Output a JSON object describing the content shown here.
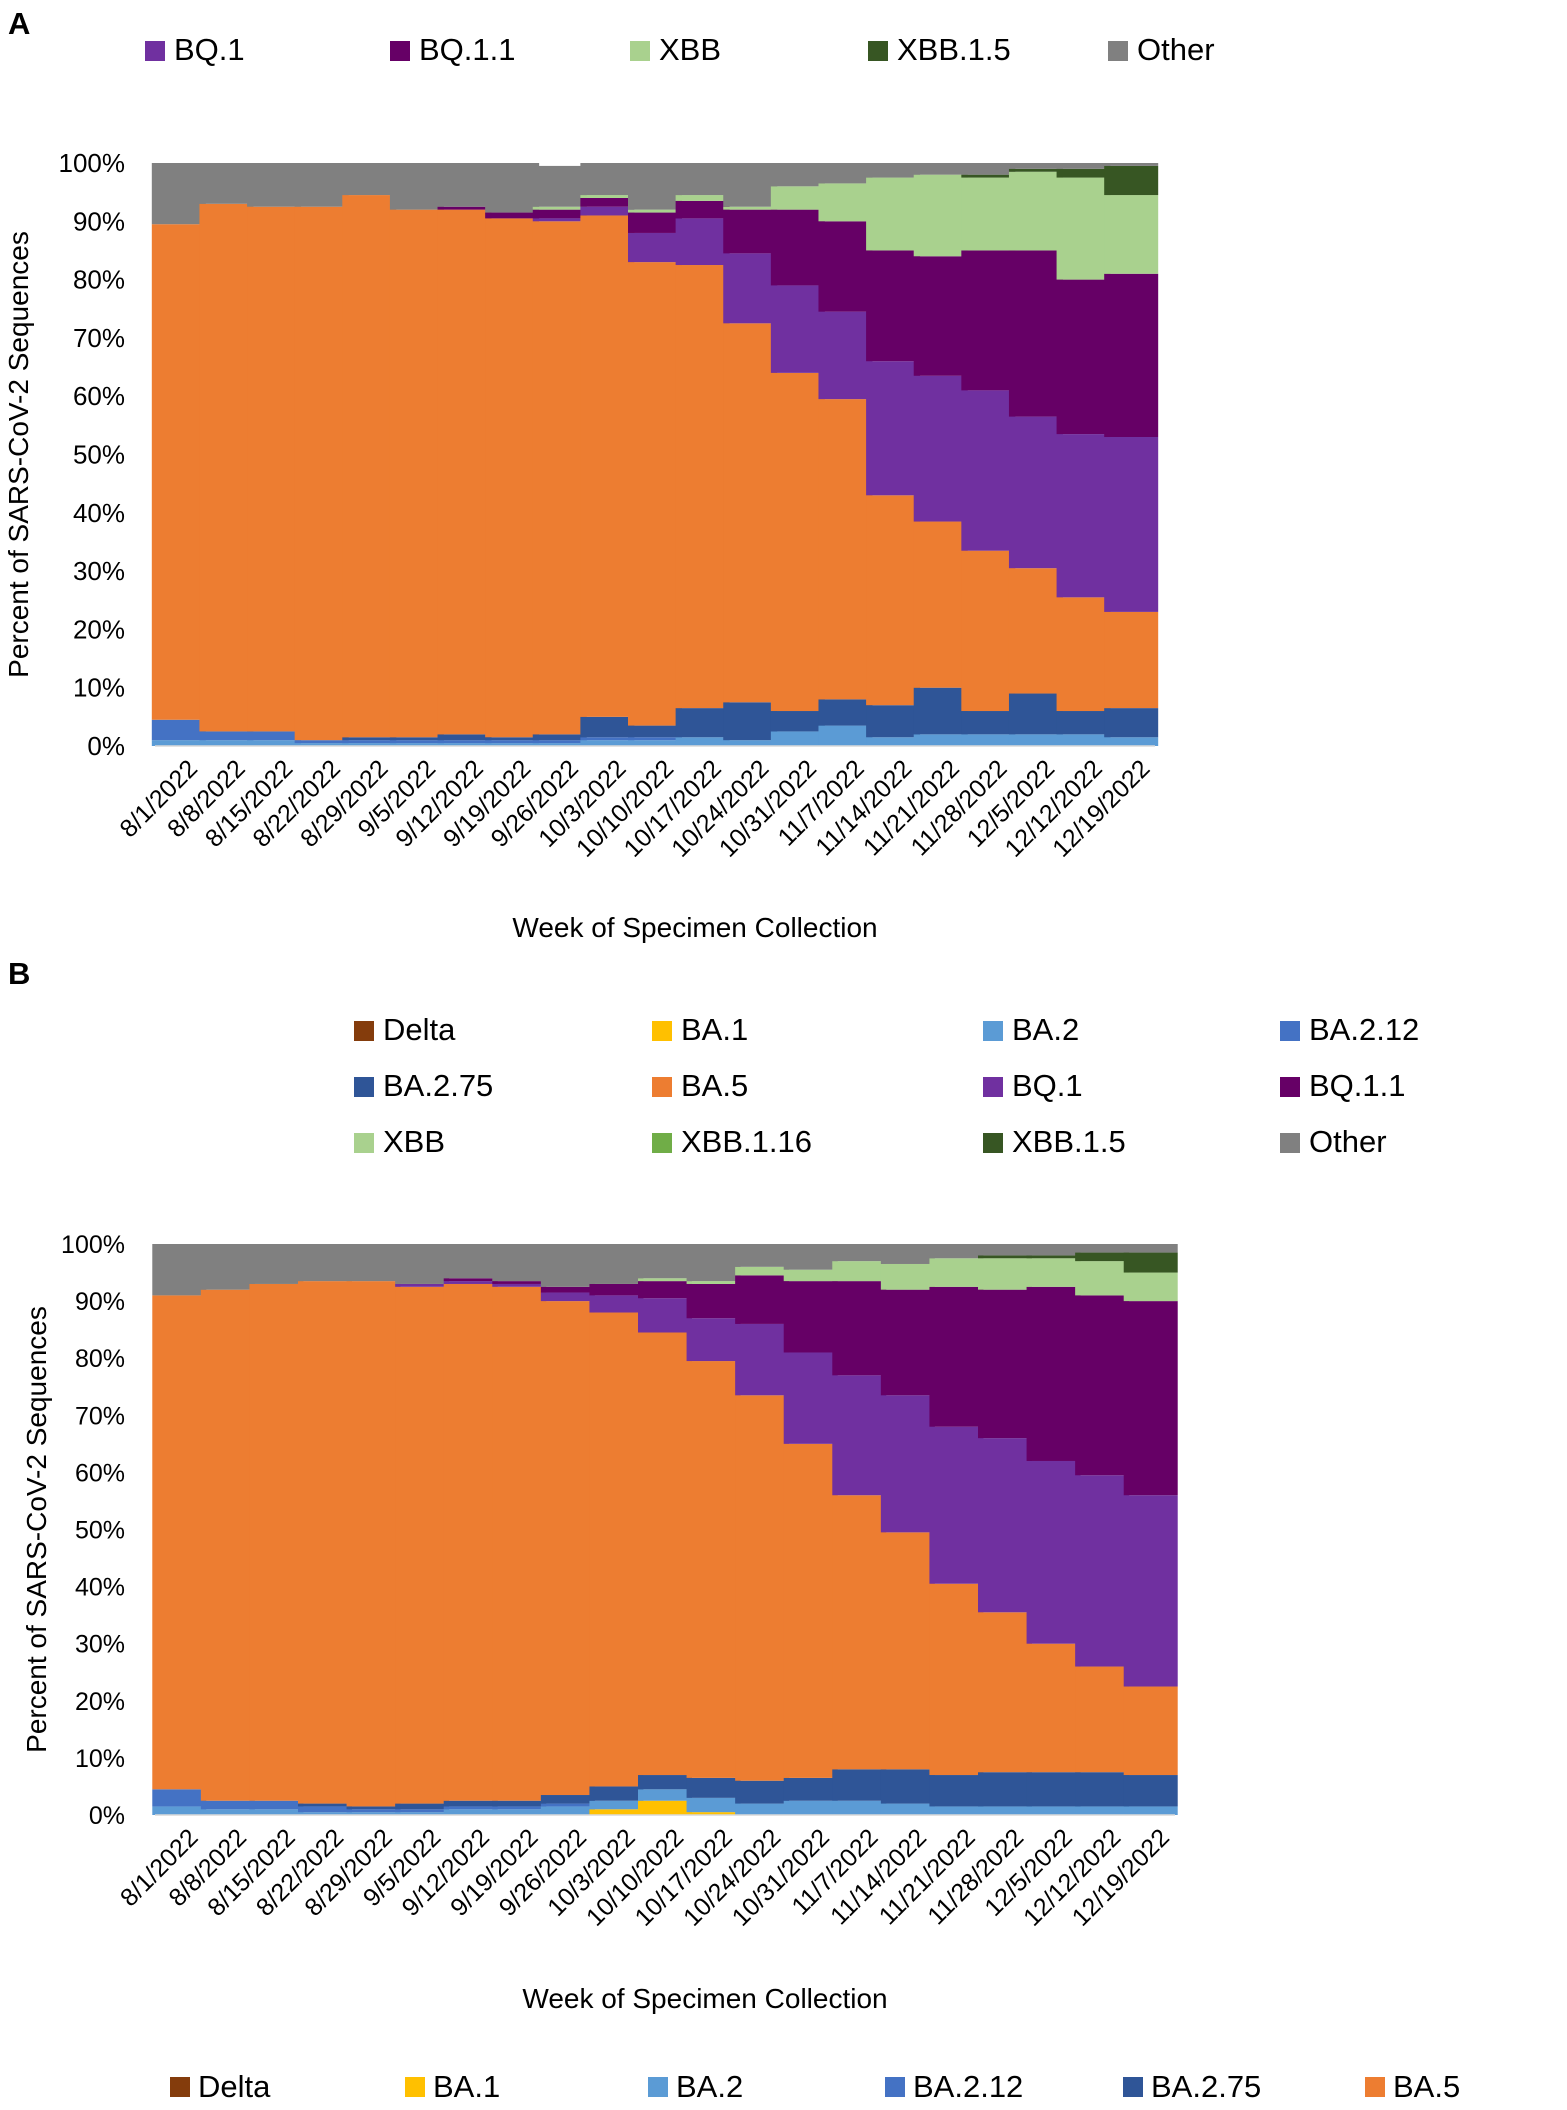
{
  "colors": {
    "Delta": "#843c0c",
    "BA.1": "#ffc000",
    "BA.2": "#5b9bd5",
    "BA.2.12": "#4472c4",
    "BA.2.75": "#2f5597",
    "BA.5": "#ed7d31",
    "BQ.1": "#7030a0",
    "BQ.1.1": "#660066",
    "XBB": "#a9d18e",
    "XBB.1.16": "#70ad47",
    "XBB.1.5": "#375623",
    "Other": "#808080"
  },
  "weeks": [
    "8/1/2022",
    "8/8/2022",
    "8/15/2022",
    "8/22/2022",
    "8/29/2022",
    "9/5/2022",
    "9/12/2022",
    "9/19/2022",
    "9/26/2022",
    "10/3/2022",
    "10/10/2022",
    "10/17/2022",
    "10/24/2022",
    "10/31/2022",
    "11/7/2022",
    "11/14/2022",
    "11/21/2022",
    "11/28/2022",
    "12/5/2022",
    "12/12/2022",
    "12/19/2022"
  ],
  "chart_data": [
    {
      "type": "bar",
      "panel_label": "A",
      "stacked": true,
      "title": "",
      "xlabel": "Week of Specimen Collection",
      "ylabel": "Percent of SARS-CoV-2 Sequences",
      "ylim": [
        0,
        100
      ],
      "yticks": [
        "0%",
        "10%",
        "20%",
        "30%",
        "40%",
        "50%",
        "60%",
        "70%",
        "80%",
        "90%",
        "100%"
      ],
      "legend": [
        "BQ.1",
        "BQ.1.1",
        "XBB",
        "XBB.1.5",
        "Other"
      ],
      "series": [
        {
          "name": "BA.2",
          "values": [
            1,
            1,
            1,
            0.5,
            0.5,
            0.5,
            0.5,
            0.5,
            0.5,
            1,
            1,
            1.5,
            1,
            2.5,
            3.5,
            1.5,
            2,
            2,
            2,
            2,
            1.5
          ]
        },
        {
          "name": "BA.2.12",
          "values": [
            3.5,
            1.5,
            1.5,
            0.5,
            0.5,
            0.5,
            0.5,
            0.5,
            0.5,
            0.5,
            0.5,
            0,
            0,
            0,
            0,
            0,
            0,
            0,
            0,
            0,
            0
          ]
        },
        {
          "name": "BA.2.75",
          "values": [
            0,
            0,
            0,
            0,
            0.5,
            0.5,
            1,
            0.5,
            1,
            3.5,
            2,
            5,
            6.5,
            3.5,
            4.5,
            5.5,
            8,
            4,
            7,
            4,
            5
          ]
        },
        {
          "name": "BA.5",
          "values": [
            85,
            90.5,
            90,
            91.5,
            93,
            90.5,
            90,
            89,
            88,
            86,
            79.5,
            76,
            65,
            58,
            51.5,
            36,
            28.5,
            27.5,
            21.5,
            19.5,
            16.5
          ]
        },
        {
          "name": "BQ.1",
          "values": [
            0,
            0,
            0,
            0,
            0,
            0,
            0,
            0,
            0.5,
            1.5,
            5,
            8,
            12,
            15,
            15,
            23,
            25,
            27.5,
            26,
            28,
            30
          ]
        },
        {
          "name": "BQ.1.1",
          "values": [
            0,
            0,
            0,
            0,
            0,
            0,
            0.5,
            1,
            1.5,
            1.5,
            3.5,
            3,
            7.5,
            13,
            15.5,
            19,
            20.5,
            24,
            28.5,
            26.5,
            28
          ]
        },
        {
          "name": "XBB",
          "values": [
            0,
            0,
            0,
            0,
            0,
            0,
            0,
            0,
            0.5,
            0.5,
            0.5,
            1,
            0.5,
            4,
            6.5,
            12.5,
            14,
            12.5,
            13.5,
            17.5,
            13.5
          ]
        },
        {
          "name": "XBB.1.5",
          "values": [
            0,
            0,
            0,
            0,
            0,
            0,
            0,
            0,
            0,
            0,
            0,
            0,
            0,
            0,
            0,
            0,
            0,
            0.5,
            0.5,
            1.5,
            5
          ]
        },
        {
          "name": "Other",
          "values": [
            10.5,
            7,
            7.5,
            7.5,
            5.5,
            8,
            7.5,
            8.5,
            7,
            5.5,
            8,
            5.5,
            7.5,
            4,
            3.5,
            2.5,
            2,
            2,
            1,
            1,
            0.5
          ]
        }
      ]
    },
    {
      "type": "bar",
      "panel_label": "B",
      "stacked": true,
      "title": "",
      "xlabel": "Week of Specimen Collection",
      "ylabel": "Percent of SARS-CoV-2 Sequences",
      "ylim": [
        0,
        100
      ],
      "yticks": [
        "0%",
        "10%",
        "20%",
        "30%",
        "40%",
        "50%",
        "60%",
        "70%",
        "80%",
        "90%",
        "100%"
      ],
      "legend": [
        "Delta",
        "BA.1",
        "BA.2",
        "BA.2.12",
        "BA.2.75",
        "BA.5",
        "BQ.1",
        "BQ.1.1",
        "XBB",
        "XBB.1.16",
        "XBB.1.5",
        "Other"
      ],
      "series": [
        {
          "name": "BA.1",
          "values": [
            0,
            0,
            0,
            0,
            0,
            0,
            0,
            0,
            0,
            1,
            2.5,
            0.5,
            0,
            0,
            0,
            0,
            0,
            0,
            0,
            0,
            0
          ]
        },
        {
          "name": "BA.2",
          "values": [
            1.5,
            1,
            1,
            0.5,
            0.5,
            0.5,
            1,
            1,
            1.5,
            1.5,
            2,
            2.5,
            2,
            2.5,
            2.5,
            2,
            1.5,
            1.5,
            1.5,
            1.5,
            1.5
          ]
        },
        {
          "name": "BA.2.12",
          "values": [
            3,
            1.5,
            1.5,
            1,
            0.5,
            0.5,
            0.5,
            0.5,
            0.5,
            0,
            0,
            0,
            0,
            0,
            0,
            0,
            0,
            0,
            0,
            0,
            0
          ]
        },
        {
          "name": "BA.2.75",
          "values": [
            0,
            0,
            0,
            0.5,
            0.5,
            1,
            1,
            1,
            1.5,
            2.5,
            2.5,
            3.5,
            4,
            4,
            5.5,
            6,
            5.5,
            6,
            6,
            6,
            5.5
          ]
        },
        {
          "name": "BA.5",
          "values": [
            86.5,
            89.5,
            90.5,
            91.5,
            92,
            90.5,
            90.5,
            90,
            86.5,
            83,
            77.5,
            73,
            67.5,
            58.5,
            48,
            41.5,
            33.5,
            28,
            22.5,
            18.5,
            15.5
          ]
        },
        {
          "name": "BQ.1",
          "values": [
            0,
            0,
            0,
            0,
            0,
            0.5,
            0.5,
            0.5,
            1.5,
            3,
            6,
            7.5,
            12.5,
            16,
            21,
            24,
            27.5,
            30.5,
            32,
            33.5,
            33.5
          ]
        },
        {
          "name": "BQ.1.1",
          "values": [
            0,
            0,
            0,
            0,
            0,
            0,
            0.5,
            0.5,
            1,
            2,
            3,
            6,
            8.5,
            12.5,
            16.5,
            18.5,
            24.5,
            26,
            30.5,
            31.5,
            34
          ]
        },
        {
          "name": "XBB",
          "values": [
            0,
            0,
            0,
            0,
            0,
            0,
            0,
            0,
            0,
            0,
            0.5,
            0.5,
            1.5,
            2,
            3.5,
            4.5,
            5,
            5.5,
            5,
            6,
            5
          ]
        },
        {
          "name": "XBB.1.5",
          "values": [
            0,
            0,
            0,
            0,
            0,
            0,
            0,
            0,
            0,
            0,
            0,
            0,
            0,
            0,
            0,
            0,
            0,
            0.5,
            0.5,
            1.5,
            3.5
          ]
        },
        {
          "name": "Other",
          "values": [
            9,
            8,
            7,
            6.5,
            6.5,
            7,
            6,
            6.5,
            7.5,
            7,
            6,
            6.5,
            4,
            4.5,
            3,
            3.5,
            2.5,
            2,
            2,
            1.5,
            1.5
          ]
        }
      ]
    }
  ],
  "bottom_legend": [
    "Delta",
    "BA.1",
    "BA.2",
    "BA.2.12",
    "BA.2.75",
    "BA.5"
  ]
}
